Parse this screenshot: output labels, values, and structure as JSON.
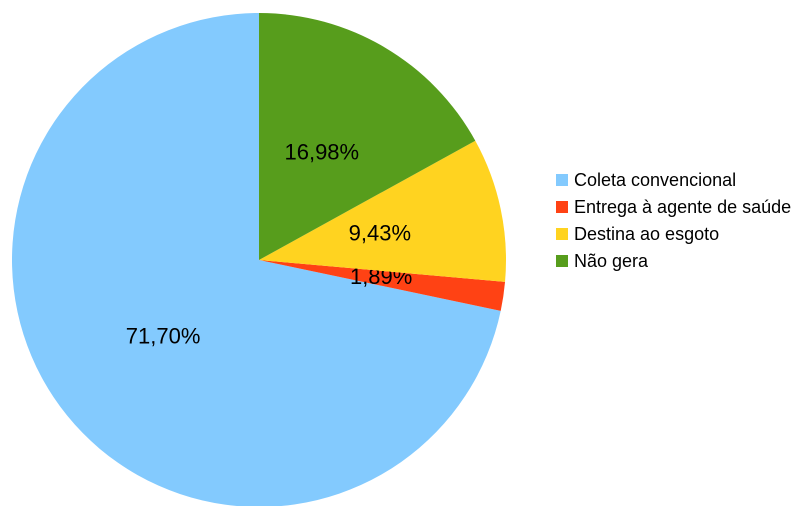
{
  "chart_data": {
    "type": "pie",
    "categories": [
      "Coleta convencional",
      "Entrega à agente de saúde",
      "Destina ao esgoto",
      "Não gera"
    ],
    "values": [
      71.7,
      1.89,
      9.43,
      16.98
    ],
    "value_labels": [
      "71,70%",
      "1,89%",
      "9,43%",
      "16,98%"
    ],
    "colors": [
      "#83cafe",
      "#ff4214",
      "#ffd320",
      "#579d1c"
    ],
    "legend": "right"
  }
}
